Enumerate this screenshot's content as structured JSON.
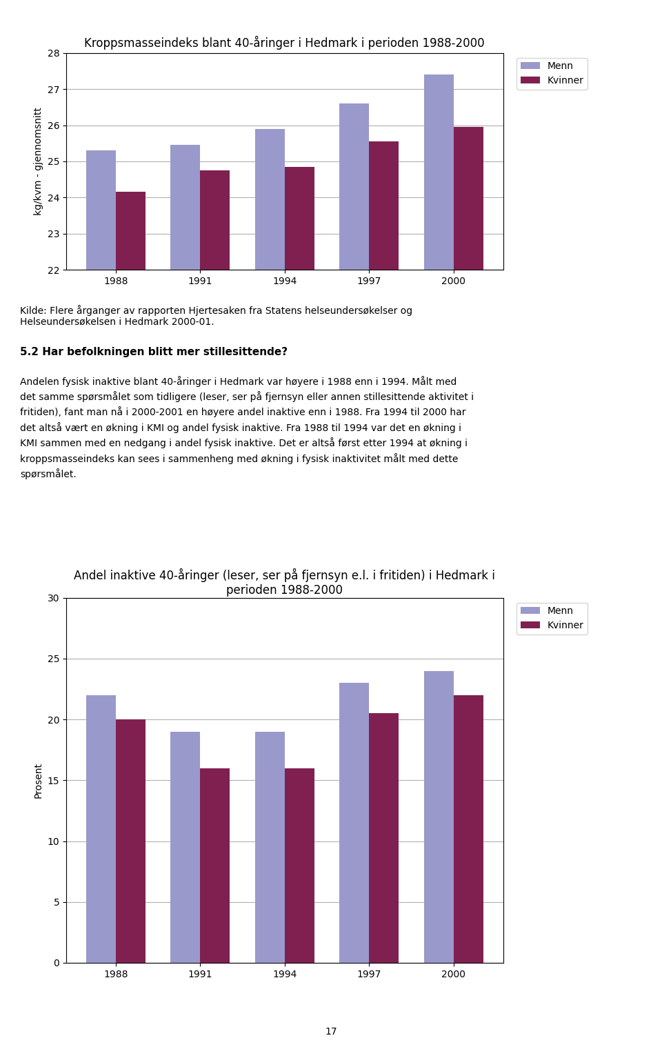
{
  "chart_data": [
    {
      "type": "bar",
      "title": "Kroppsmasseindeks blant 40-åringer i Hedmark i perioden 1988-2000",
      "categories": [
        "1988",
        "1991",
        "1994",
        "1997",
        "2000"
      ],
      "series": [
        {
          "name": "Menn",
          "color": "#9999cc",
          "values": [
            25.3,
            25.45,
            25.9,
            26.6,
            27.4
          ]
        },
        {
          "name": "Kvinner",
          "color": "#7f2050",
          "values": [
            24.15,
            24.75,
            24.85,
            25.55,
            25.95
          ]
        }
      ],
      "y_label": "kg/kvm - gjennomsnitt",
      "ylim": [
        22,
        28
      ],
      "yticks": [
        22,
        23,
        24,
        25,
        26,
        27,
        28
      ],
      "grid": true,
      "legend": "upper right"
    },
    {
      "type": "bar",
      "title": "Andel inaktive 40-åringer (leser, ser på fjernsyn e.l. i fritiden) i Hedmark i\nperioden 1988-2000",
      "categories": [
        "1988",
        "1991",
        "1994",
        "1997",
        "2000"
      ],
      "series": [
        {
          "name": "Menn",
          "color": "#9999cc",
          "values": [
            22,
            19,
            19,
            23,
            24
          ]
        },
        {
          "name": "Kvinner",
          "color": "#7f2050",
          "values": [
            20,
            16,
            16,
            20.5,
            22
          ]
        }
      ],
      "y_label": "Prosent",
      "ylim": [
        0,
        30
      ],
      "yticks": [
        0,
        5,
        10,
        15,
        20,
        25,
        30
      ],
      "grid": true,
      "legend": "upper right"
    }
  ],
  "annotations": [
    "Kilde: Flere årganger av rapporten Hjertesaken fra Statens helseundersøkelser og\nHelseundersøkelsen i Hedmark 2000-01.",
    "5.2 Har befolkningen blitt mer stillesittende?",
    "Andelen fysisk inaktive blant 40-åringer i Hedmark var høyere i 1988 enn i 1994. Målt med\ndet samme spørsmålet som tidligere (leser, ser på fjernsyn eller annen stillesittende aktivitet i\nfritiden), fant man nå i 2000-2001 en høyere andel inaktive enn i 1988. Fra 1994 til 2000 har\ndet altså vært en økning i KMI og andel fysisk inaktive. Fra 1988 til 1994 var det en økning i\nKMI sammen med en nedgang i andel fysisk inaktive. Det er altså først etter 1994 at økning i\nkroppsmasseindeks kan sees i sammenheng med økning i fysisk inaktivitet målt med dette\nspørsmålet.",
    "17"
  ]
}
